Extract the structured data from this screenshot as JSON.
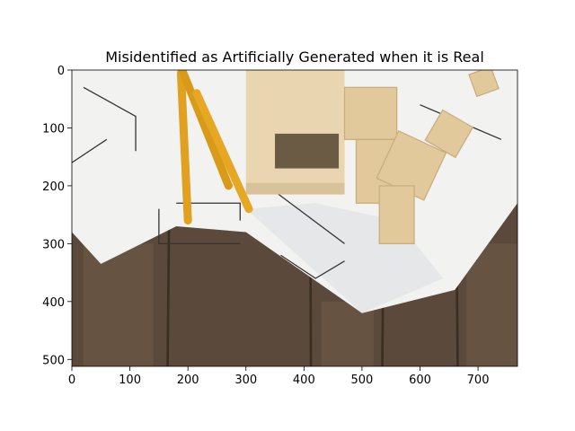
{
  "chart_data": {
    "type": "image",
    "title": "Misidentified as Artificially Generated when it is Real",
    "xlim": [
      0,
      768
    ],
    "ylim": [
      512,
      0
    ],
    "xticks": [
      0,
      100,
      200,
      300,
      400,
      500,
      600,
      700
    ],
    "yticks": [
      0,
      100,
      200,
      300,
      400,
      500
    ]
  }
}
